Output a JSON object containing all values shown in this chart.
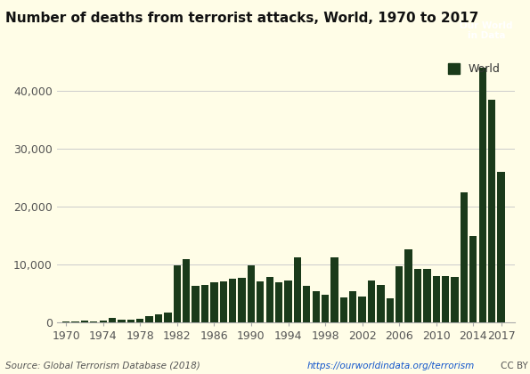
{
  "title": "Number of deaths from terrorist attacks, World, 1970 to 2017",
  "background_color": "#fffde7",
  "bar_color": "#1a3a1a",
  "years": [
    1970,
    1971,
    1972,
    1973,
    1974,
    1975,
    1976,
    1977,
    1978,
    1979,
    1980,
    1981,
    1982,
    1983,
    1984,
    1985,
    1986,
    1987,
    1988,
    1989,
    1990,
    1991,
    1992,
    1993,
    1994,
    1995,
    1996,
    1997,
    1998,
    1999,
    2000,
    2001,
    2002,
    2003,
    2004,
    2005,
    2006,
    2007,
    2008,
    2009,
    2010,
    2011,
    2012,
    2013,
    2014,
    2015,
    2016,
    2017
  ],
  "values": [
    130,
    180,
    240,
    200,
    380,
    700,
    430,
    460,
    600,
    1100,
    1400,
    1700,
    9800,
    10900,
    6300,
    6400,
    7000,
    7100,
    7600,
    7700,
    9800,
    7100,
    7800,
    7000,
    7200,
    11200,
    6300,
    5400,
    4700,
    11300,
    4300,
    5400,
    4400,
    7200,
    6400,
    4200,
    9700,
    12700,
    9200,
    9200,
    8000,
    8000,
    7800,
    22500,
    15000,
    44000,
    38500,
    26000
  ],
  "yticks": [
    0,
    10000,
    20000,
    30000,
    40000
  ],
  "ytick_labels": [
    "0",
    "10,000",
    "20,000",
    "30,000",
    "40,000"
  ],
  "xtick_years": [
    1970,
    1974,
    1978,
    1982,
    1986,
    1990,
    1994,
    1998,
    2002,
    2006,
    2010,
    2014,
    2017
  ],
  "source_text": "Source: Global Terrorism Database (2018)",
  "url_text": "https://ourworldindata.org/terrorism",
  "cc_text": "CC BY",
  "legend_label": "World",
  "owid_box_color": "#111111",
  "owid_text": "Our World\nin Data",
  "ylim": [
    0,
    47000
  ]
}
